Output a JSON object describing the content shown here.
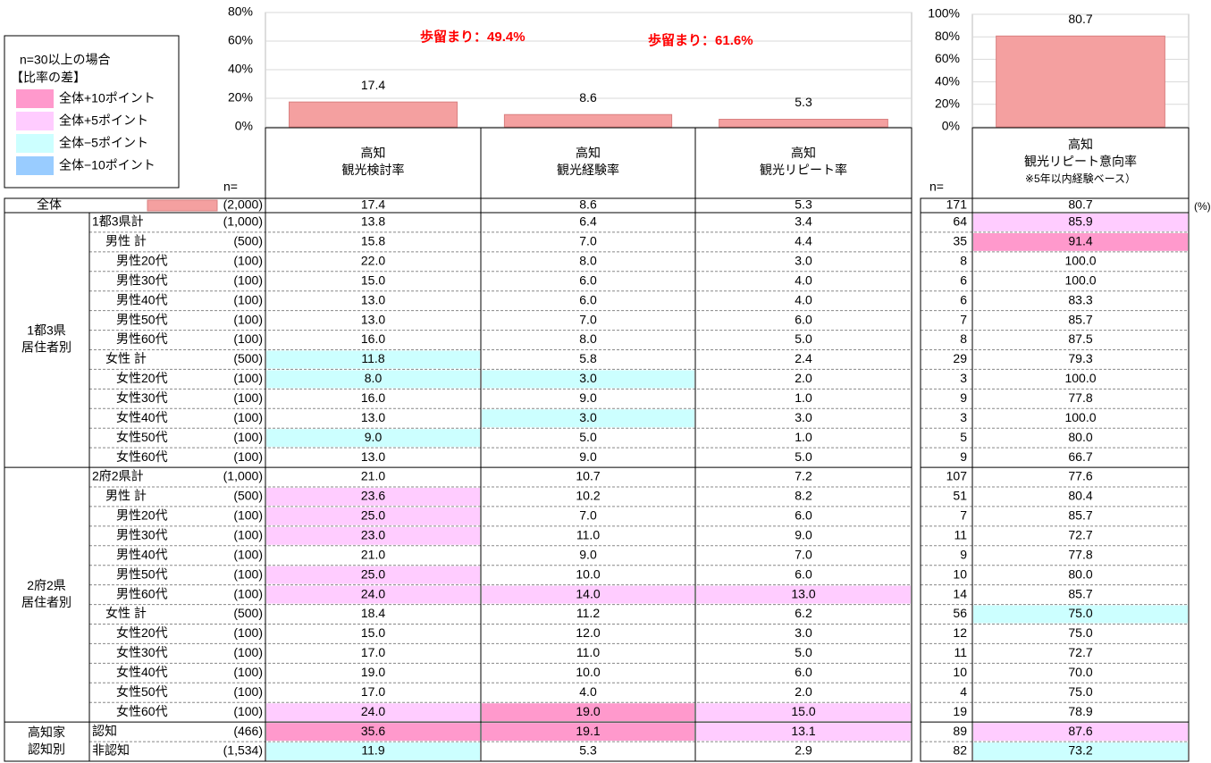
{
  "legend": {
    "title": "n=30以上の場合",
    "subtitle": "【比率の差】",
    "items": [
      {
        "label": "全体+10ポイント",
        "color": "#ff99cc"
      },
      {
        "label": "全体+5ポイント",
        "color": "#ffccff"
      },
      {
        "label": "全体−5ポイント",
        "color": "#ccffff"
      },
      {
        "label": "全体−10ポイント",
        "color": "#99ccff"
      }
    ]
  },
  "chart_data": [
    {
      "type": "bar",
      "values": [
        17.4,
        8.6,
        5.3
      ],
      "color": "#f4a0a0",
      "ylim": [
        0,
        80
      ],
      "yticks": [
        {
          "value": 0,
          "label": "0%"
        },
        {
          "value": 20,
          "label": "20%"
        },
        {
          "value": 40,
          "label": "40%"
        },
        {
          "value": 60,
          "label": "60%"
        },
        {
          "value": 80,
          "label": "80%"
        }
      ],
      "grid": true,
      "annotations": [
        {
          "text": "歩留まり：",
          "value": "49.4%"
        },
        {
          "text": "歩留まり：",
          "value": "61.6%"
        }
      ]
    },
    {
      "type": "bar",
      "values": [
        80.7
      ],
      "color": "#f4a0a0",
      "ylim": [
        0,
        100
      ],
      "yticks": [
        {
          "value": 0,
          "label": "0%"
        },
        {
          "value": 20,
          "label": "20%"
        },
        {
          "value": 40,
          "label": "40%"
        },
        {
          "value": 60,
          "label": "60%"
        },
        {
          "value": 80,
          "label": "80%"
        },
        {
          "value": 100,
          "label": "100%"
        }
      ],
      "grid": true
    }
  ],
  "table": {
    "n_label": "n=",
    "columns": [
      [
        "高知",
        "観光検討率"
      ],
      [
        "高知",
        "観光経験率"
      ],
      [
        "高知",
        "観光リピート率"
      ],
      [
        "高知",
        "観光リピート意向率",
        "※5年以内経験ベース）"
      ]
    ],
    "unit": "(%)",
    "total": {
      "label": "全体",
      "cells": [
        "(2,000)",
        "17.4",
        "8.6",
        "5.3",
        "171",
        "80.7"
      ]
    },
    "groups": [
      {
        "label": [
          "1都3県",
          "居住者別"
        ],
        "rows": [
          {
            "label": "1都3県計",
            "cells": [
              "(1,000)",
              "13.8",
              "6.4",
              "3.4",
              "64",
              "85.9"
            ],
            "fills": [
              null,
              null,
              null,
              "#ffccff"
            ]
          },
          {
            "label": "男性 計",
            "cells": [
              "(500)",
              "15.8",
              "7.0",
              "4.4",
              "35",
              "91.4"
            ],
            "fills": [
              null,
              null,
              null,
              "#ff99cc"
            ]
          },
          {
            "label": "男性20代",
            "cells": [
              "(100)",
              "22.0",
              "8.0",
              "3.0",
              "8",
              "100.0"
            ]
          },
          {
            "label": "男性30代",
            "cells": [
              "(100)",
              "15.0",
              "6.0",
              "4.0",
              "6",
              "100.0"
            ]
          },
          {
            "label": "男性40代",
            "cells": [
              "(100)",
              "13.0",
              "6.0",
              "4.0",
              "6",
              "83.3"
            ]
          },
          {
            "label": "男性50代",
            "cells": [
              "(100)",
              "13.0",
              "7.0",
              "6.0",
              "7",
              "85.7"
            ]
          },
          {
            "label": "男性60代",
            "cells": [
              "(100)",
              "16.0",
              "8.0",
              "5.0",
              "8",
              "87.5"
            ]
          },
          {
            "label": "女性 計",
            "cells": [
              "(500)",
              "11.8",
              "5.8",
              "2.4",
              "29",
              "79.3"
            ],
            "fills": [
              "#ccffff",
              null,
              null,
              null
            ]
          },
          {
            "label": "女性20代",
            "cells": [
              "(100)",
              "8.0",
              "3.0",
              "2.0",
              "3",
              "100.0"
            ],
            "fills": [
              "#ccffff",
              "#ccffff",
              null,
              null
            ]
          },
          {
            "label": "女性30代",
            "cells": [
              "(100)",
              "16.0",
              "9.0",
              "1.0",
              "9",
              "77.8"
            ]
          },
          {
            "label": "女性40代",
            "cells": [
              "(100)",
              "13.0",
              "3.0",
              "3.0",
              "3",
              "100.0"
            ],
            "fills": [
              null,
              "#ccffff",
              null,
              null
            ]
          },
          {
            "label": "女性50代",
            "cells": [
              "(100)",
              "9.0",
              "5.0",
              "1.0",
              "5",
              "80.0"
            ],
            "fills": [
              "#ccffff",
              null,
              null,
              null
            ]
          },
          {
            "label": "女性60代",
            "cells": [
              "(100)",
              "13.0",
              "9.0",
              "5.0",
              "9",
              "66.7"
            ]
          }
        ]
      },
      {
        "label": [
          "2府2県",
          "居住者別"
        ],
        "rows": [
          {
            "label": "2府2県計",
            "cells": [
              "(1,000)",
              "21.0",
              "10.7",
              "7.2",
              "107",
              "77.6"
            ]
          },
          {
            "label": "男性 計",
            "cells": [
              "(500)",
              "23.6",
              "10.2",
              "8.2",
              "51",
              "80.4"
            ],
            "fills": [
              "#ffccff",
              null,
              null,
              null
            ]
          },
          {
            "label": "男性20代",
            "cells": [
              "(100)",
              "25.0",
              "7.0",
              "6.0",
              "7",
              "85.7"
            ],
            "fills": [
              "#ffccff",
              null,
              null,
              null
            ]
          },
          {
            "label": "男性30代",
            "cells": [
              "(100)",
              "23.0",
              "11.0",
              "9.0",
              "11",
              "72.7"
            ],
            "fills": [
              "#ffccff",
              null,
              null,
              null
            ]
          },
          {
            "label": "男性40代",
            "cells": [
              "(100)",
              "21.0",
              "9.0",
              "7.0",
              "9",
              "77.8"
            ]
          },
          {
            "label": "男性50代",
            "cells": [
              "(100)",
              "25.0",
              "10.0",
              "6.0",
              "10",
              "80.0"
            ],
            "fills": [
              "#ffccff",
              null,
              null,
              null
            ]
          },
          {
            "label": "男性60代",
            "cells": [
              "(100)",
              "24.0",
              "14.0",
              "13.0",
              "14",
              "85.7"
            ],
            "fills": [
              "#ffccff",
              "#ffccff",
              "#ffccff",
              null
            ]
          },
          {
            "label": "女性 計",
            "cells": [
              "(500)",
              "18.4",
              "11.2",
              "6.2",
              "56",
              "75.0"
            ],
            "fills": [
              null,
              null,
              null,
              "#ccffff"
            ]
          },
          {
            "label": "女性20代",
            "cells": [
              "(100)",
              "15.0",
              "12.0",
              "3.0",
              "12",
              "75.0"
            ]
          },
          {
            "label": "女性30代",
            "cells": [
              "(100)",
              "17.0",
              "11.0",
              "5.0",
              "11",
              "72.7"
            ]
          },
          {
            "label": "女性40代",
            "cells": [
              "(100)",
              "19.0",
              "10.0",
              "6.0",
              "10",
              "70.0"
            ]
          },
          {
            "label": "女性50代",
            "cells": [
              "(100)",
              "17.0",
              "4.0",
              "2.0",
              "4",
              "75.0"
            ]
          },
          {
            "label": "女性60代",
            "cells": [
              "(100)",
              "24.0",
              "19.0",
              "15.0",
              "19",
              "78.9"
            ],
            "fills": [
              "#ffccff",
              "#ff99cc",
              "#ffccff",
              null
            ]
          }
        ]
      },
      {
        "label": [
          "高知家",
          "認知別"
        ],
        "rows": [
          {
            "label": "認知",
            "cells": [
              "(466)",
              "35.6",
              "19.1",
              "13.1",
              "89",
              "87.6"
            ],
            "fills": [
              "#ff99cc",
              "#ff99cc",
              "#ffccff",
              "#ffccff"
            ]
          },
          {
            "label": "非認知",
            "cells": [
              "(1,534)",
              "11.9",
              "5.3",
              "2.9",
              "82",
              "73.2"
            ],
            "fills": [
              "#ccffff",
              null,
              null,
              "#ccffff"
            ]
          }
        ]
      }
    ]
  }
}
